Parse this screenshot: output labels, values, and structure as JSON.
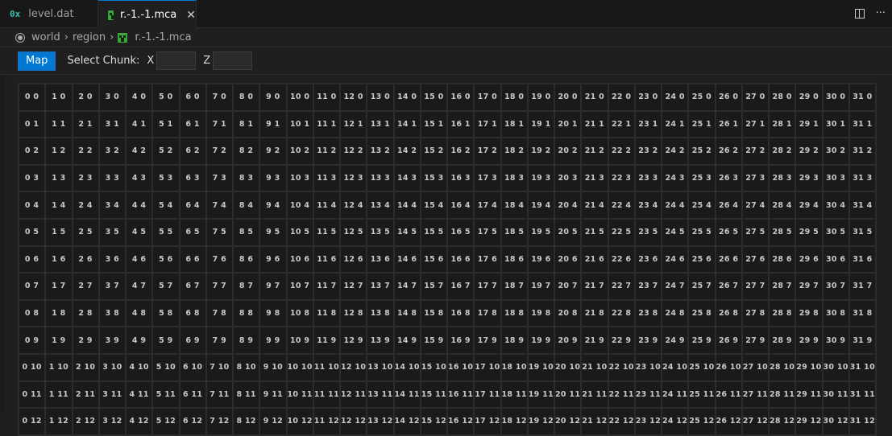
{
  "tabs": [
    {
      "label": "level.dat",
      "icon": "hex-file-icon",
      "icon_text": "0x",
      "active": false
    },
    {
      "label": "r.-1.-1.mca",
      "icon": "creeper-icon",
      "active": true
    }
  ],
  "breadcrumb": [
    "world",
    "region",
    "r.-1.-1.mca"
  ],
  "toolbar": {
    "map_label": "Map",
    "select_chunk_label": "Select Chunk:",
    "x_label": "X",
    "z_label": "Z",
    "x_value": "",
    "z_value": ""
  },
  "colors": {
    "accent": "#0078d4",
    "creeper": "#3ea43e"
  },
  "chunk_grid": {
    "x_values": [
      0,
      1,
      2,
      3,
      4,
      5,
      6,
      7,
      8,
      9,
      10,
      11,
      12,
      13,
      14,
      15,
      16,
      17,
      18,
      19,
      20,
      21,
      22,
      23,
      24,
      25,
      26,
      27,
      28,
      29,
      30,
      31
    ],
    "z_values": [
      0,
      1,
      2,
      3,
      4,
      5,
      6,
      7,
      8,
      9,
      10,
      11,
      12
    ]
  }
}
